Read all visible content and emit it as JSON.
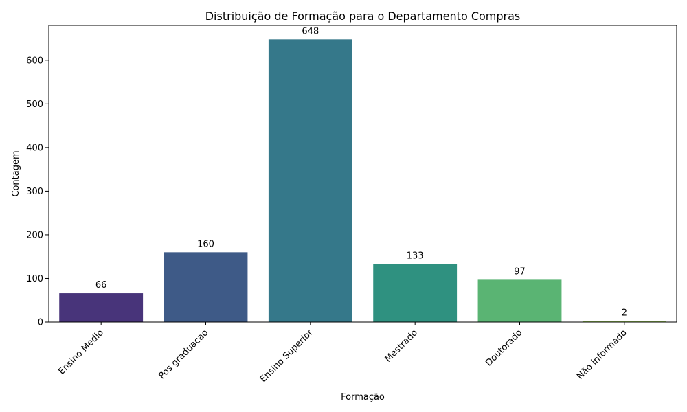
{
  "chart_data": {
    "type": "bar",
    "title": "Distribuição de Formação para o Departamento Compras",
    "xlabel": "Formação",
    "ylabel": "Contagem",
    "categories": [
      "Ensino Medio",
      "Pos graduacao",
      "Ensino Superior",
      "Mestrado",
      "Doutorado",
      "Não informado"
    ],
    "values": [
      66,
      160,
      648,
      133,
      97,
      2
    ],
    "ylim": [
      0,
      680
    ],
    "yticks": [
      0,
      100,
      200,
      300,
      400,
      500,
      600
    ],
    "ytick_labels": [
      "0",
      "100",
      "200",
      "300",
      "400",
      "500",
      "600"
    ],
    "colors": [
      "#48347a",
      "#3e5a87",
      "#35788a",
      "#2f9180",
      "#5ab473",
      "#9ccb5a"
    ],
    "grid": false
  }
}
